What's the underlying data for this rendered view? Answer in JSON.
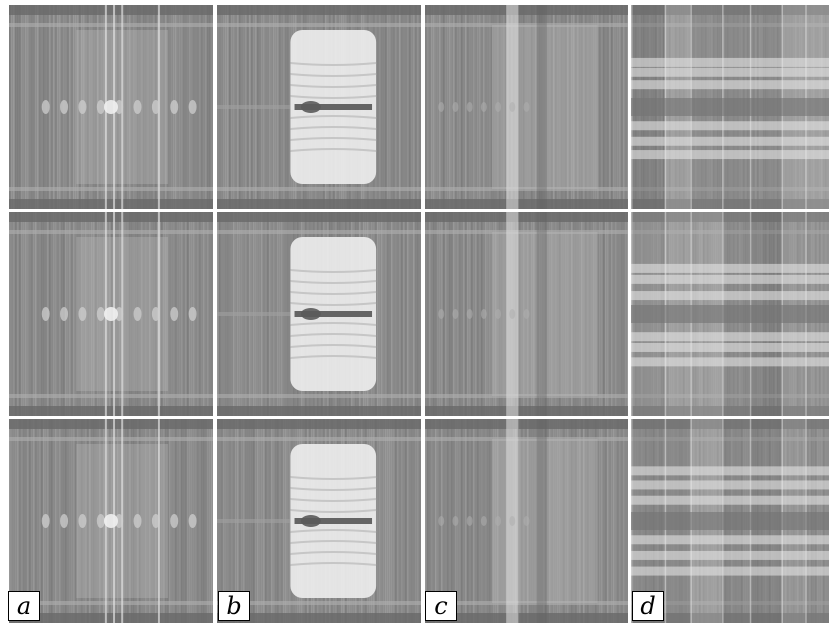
{
  "figure": {
    "rows": 3,
    "columns": [
      {
        "id": "a",
        "label": "a",
        "style": "horizontally-periodic texture, bright central column"
      },
      {
        "id": "b",
        "label": "b",
        "style": "bright central blob with dark horizontal streak"
      },
      {
        "id": "c",
        "label": "c",
        "style": "diffuse vertical banding"
      },
      {
        "id": "d",
        "label": "d",
        "style": "irregular vertical slabs with bright horizontal bands"
      }
    ],
    "colors": {
      "background": "#ffffff",
      "panel_base": "#8a8a8a",
      "highlight": "#f2f2f2",
      "shadow": "#555555",
      "label_border": "#000000"
    }
  }
}
